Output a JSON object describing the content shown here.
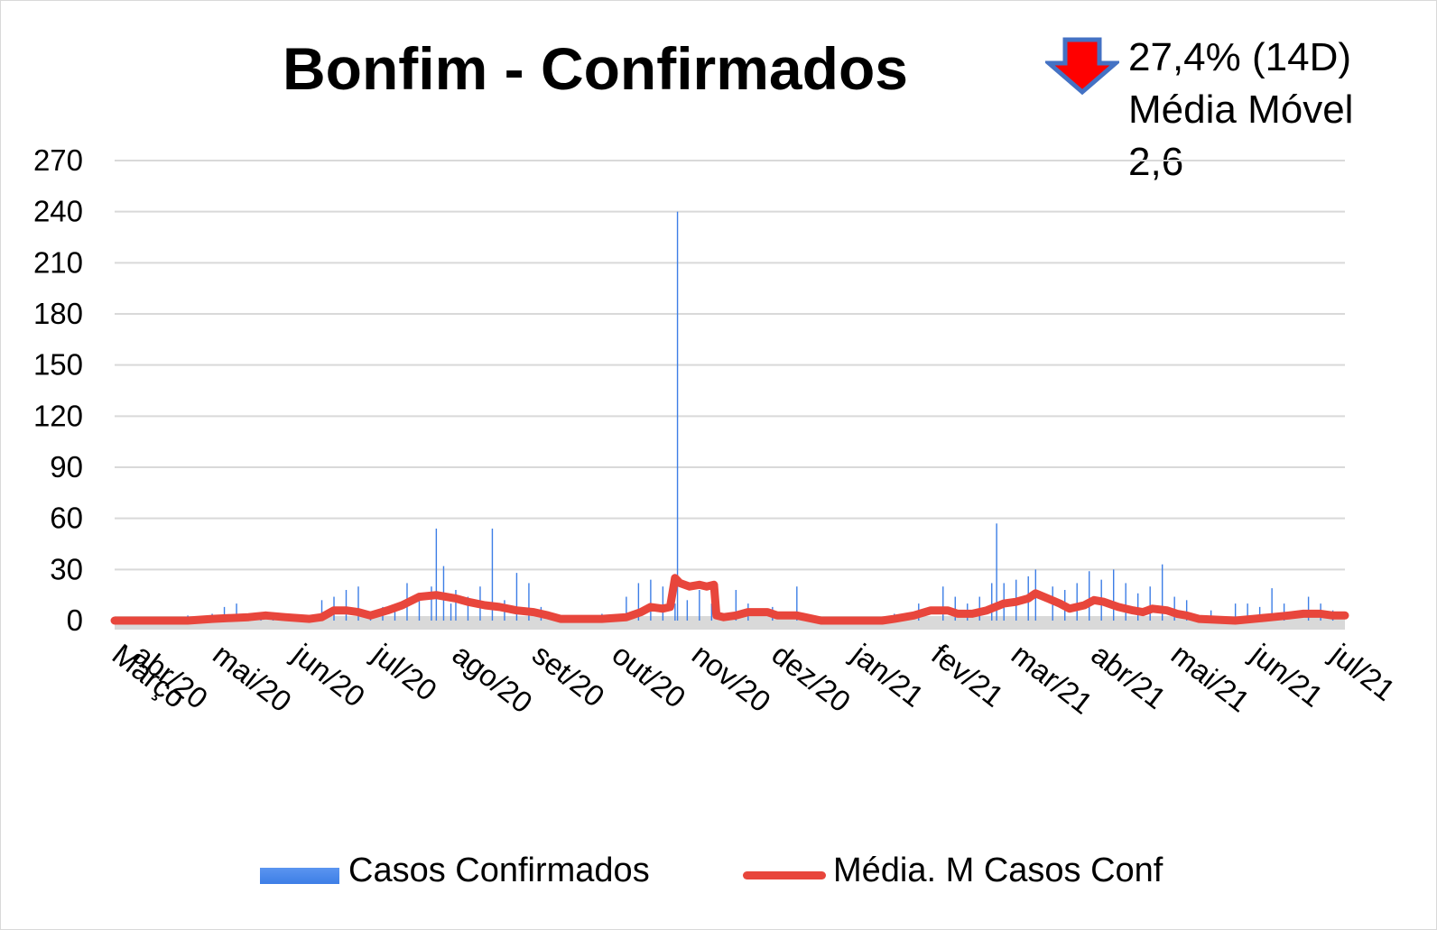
{
  "chart_data": {
    "type": "bar+line",
    "title": "Bonfim - Confirmados",
    "annotation": {
      "arrow": "down-arrow-icon",
      "arrow_color": "#ff0000",
      "arrow_border": "#4472c4",
      "line1": "27,4% (14D)",
      "line2": "Média Móvel",
      "line3": "2,6"
    },
    "ylim": [
      0,
      270
    ],
    "yticks": [
      "0",
      "30",
      "60",
      "90",
      "120",
      "150",
      "180",
      "210",
      "240",
      "270"
    ],
    "x_categories": [
      "Março",
      "abr/20",
      "mai/20",
      "jun/20",
      "jul/20",
      "ago/20",
      "set/20",
      "out/20",
      "nov/20",
      "dez/20",
      "jan/21",
      "fev/21",
      "mar/21",
      "abr/21",
      "mai/21",
      "jun/21",
      "jul/21"
    ],
    "grid": true,
    "legend_position": "bottom",
    "series": [
      {
        "name": "Casos Confirmados",
        "type": "bar",
        "color": "#3d7ee6",
        "values_sparse_daily": [
          [
            20,
            0
          ],
          [
            25,
            2
          ],
          [
            30,
            3
          ],
          [
            40,
            4
          ],
          [
            45,
            8
          ],
          [
            50,
            10
          ],
          [
            55,
            3
          ],
          [
            60,
            2
          ],
          [
            65,
            4
          ],
          [
            70,
            1
          ],
          [
            85,
            12
          ],
          [
            90,
            14
          ],
          [
            95,
            18
          ],
          [
            100,
            20
          ],
          [
            105,
            5
          ],
          [
            110,
            8
          ],
          [
            115,
            6
          ],
          [
            120,
            22
          ],
          [
            125,
            15
          ],
          [
            130,
            20
          ],
          [
            132,
            54
          ],
          [
            135,
            32
          ],
          [
            138,
            10
          ],
          [
            140,
            18
          ],
          [
            145,
            14
          ],
          [
            150,
            20
          ],
          [
            155,
            54
          ],
          [
            160,
            12
          ],
          [
            165,
            28
          ],
          [
            170,
            22
          ],
          [
            175,
            8
          ],
          [
            180,
            4
          ],
          [
            200,
            4
          ],
          [
            210,
            14
          ],
          [
            215,
            22
          ],
          [
            220,
            24
          ],
          [
            225,
            20
          ],
          [
            230,
            10
          ],
          [
            231,
            240
          ],
          [
            235,
            12
          ],
          [
            240,
            18
          ],
          [
            245,
            10
          ],
          [
            255,
            18
          ],
          [
            260,
            10
          ],
          [
            270,
            8
          ],
          [
            280,
            20
          ],
          [
            300,
            2
          ],
          [
            320,
            4
          ],
          [
            330,
            10
          ],
          [
            340,
            20
          ],
          [
            345,
            14
          ],
          [
            350,
            10
          ],
          [
            355,
            14
          ],
          [
            360,
            22
          ],
          [
            362,
            57
          ],
          [
            365,
            22
          ],
          [
            370,
            24
          ],
          [
            375,
            26
          ],
          [
            378,
            30
          ],
          [
            385,
            20
          ],
          [
            390,
            18
          ],
          [
            395,
            22
          ],
          [
            400,
            29
          ],
          [
            405,
            24
          ],
          [
            410,
            30
          ],
          [
            415,
            22
          ],
          [
            420,
            16
          ],
          [
            425,
            20
          ],
          [
            430,
            33
          ],
          [
            435,
            14
          ],
          [
            440,
            12
          ],
          [
            450,
            6
          ],
          [
            460,
            10
          ],
          [
            465,
            10
          ],
          [
            470,
            8
          ],
          [
            475,
            19
          ],
          [
            480,
            10
          ],
          [
            490,
            14
          ],
          [
            495,
            10
          ],
          [
            500,
            6
          ]
        ]
      },
      {
        "name": "Média. M Casos Conf",
        "type": "line",
        "color": "#e8463c",
        "values_sparse_daily": [
          [
            0,
            0
          ],
          [
            30,
            0
          ],
          [
            40,
            1
          ],
          [
            55,
            2
          ],
          [
            62,
            3
          ],
          [
            70,
            2
          ],
          [
            80,
            1
          ],
          [
            85,
            2
          ],
          [
            90,
            6
          ],
          [
            95,
            6
          ],
          [
            100,
            5
          ],
          [
            105,
            3
          ],
          [
            112,
            6
          ],
          [
            118,
            9
          ],
          [
            125,
            14
          ],
          [
            132,
            15
          ],
          [
            140,
            13
          ],
          [
            145,
            11
          ],
          [
            152,
            9
          ],
          [
            158,
            8
          ],
          [
            165,
            6
          ],
          [
            172,
            5
          ],
          [
            178,
            3
          ],
          [
            183,
            1
          ],
          [
            200,
            1
          ],
          [
            210,
            2
          ],
          [
            216,
            5
          ],
          [
            220,
            8
          ],
          [
            225,
            7
          ],
          [
            228,
            8
          ],
          [
            230,
            25
          ],
          [
            232,
            22
          ],
          [
            236,
            20
          ],
          [
            240,
            21
          ],
          [
            243,
            20
          ],
          [
            246,
            21
          ],
          [
            247,
            3
          ],
          [
            250,
            2
          ],
          [
            255,
            3
          ],
          [
            260,
            5
          ],
          [
            268,
            5
          ],
          [
            272,
            3
          ],
          [
            280,
            3
          ],
          [
            290,
            0
          ],
          [
            315,
            0
          ],
          [
            320,
            1
          ],
          [
            328,
            3
          ],
          [
            335,
            6
          ],
          [
            342,
            6
          ],
          [
            346,
            4
          ],
          [
            352,
            4
          ],
          [
            358,
            6
          ],
          [
            365,
            10
          ],
          [
            370,
            11
          ],
          [
            375,
            13
          ],
          [
            378,
            16
          ],
          [
            383,
            13
          ],
          [
            388,
            10
          ],
          [
            392,
            7
          ],
          [
            398,
            9
          ],
          [
            402,
            12
          ],
          [
            406,
            11
          ],
          [
            412,
            8
          ],
          [
            418,
            6
          ],
          [
            422,
            5
          ],
          [
            426,
            7
          ],
          [
            432,
            6
          ],
          [
            436,
            4
          ],
          [
            440,
            3
          ],
          [
            445,
            1
          ],
          [
            460,
            0
          ],
          [
            475,
            2
          ],
          [
            482,
            3
          ],
          [
            488,
            4
          ],
          [
            495,
            4
          ],
          [
            500,
            3
          ],
          [
            505,
            3
          ]
        ]
      }
    ]
  }
}
